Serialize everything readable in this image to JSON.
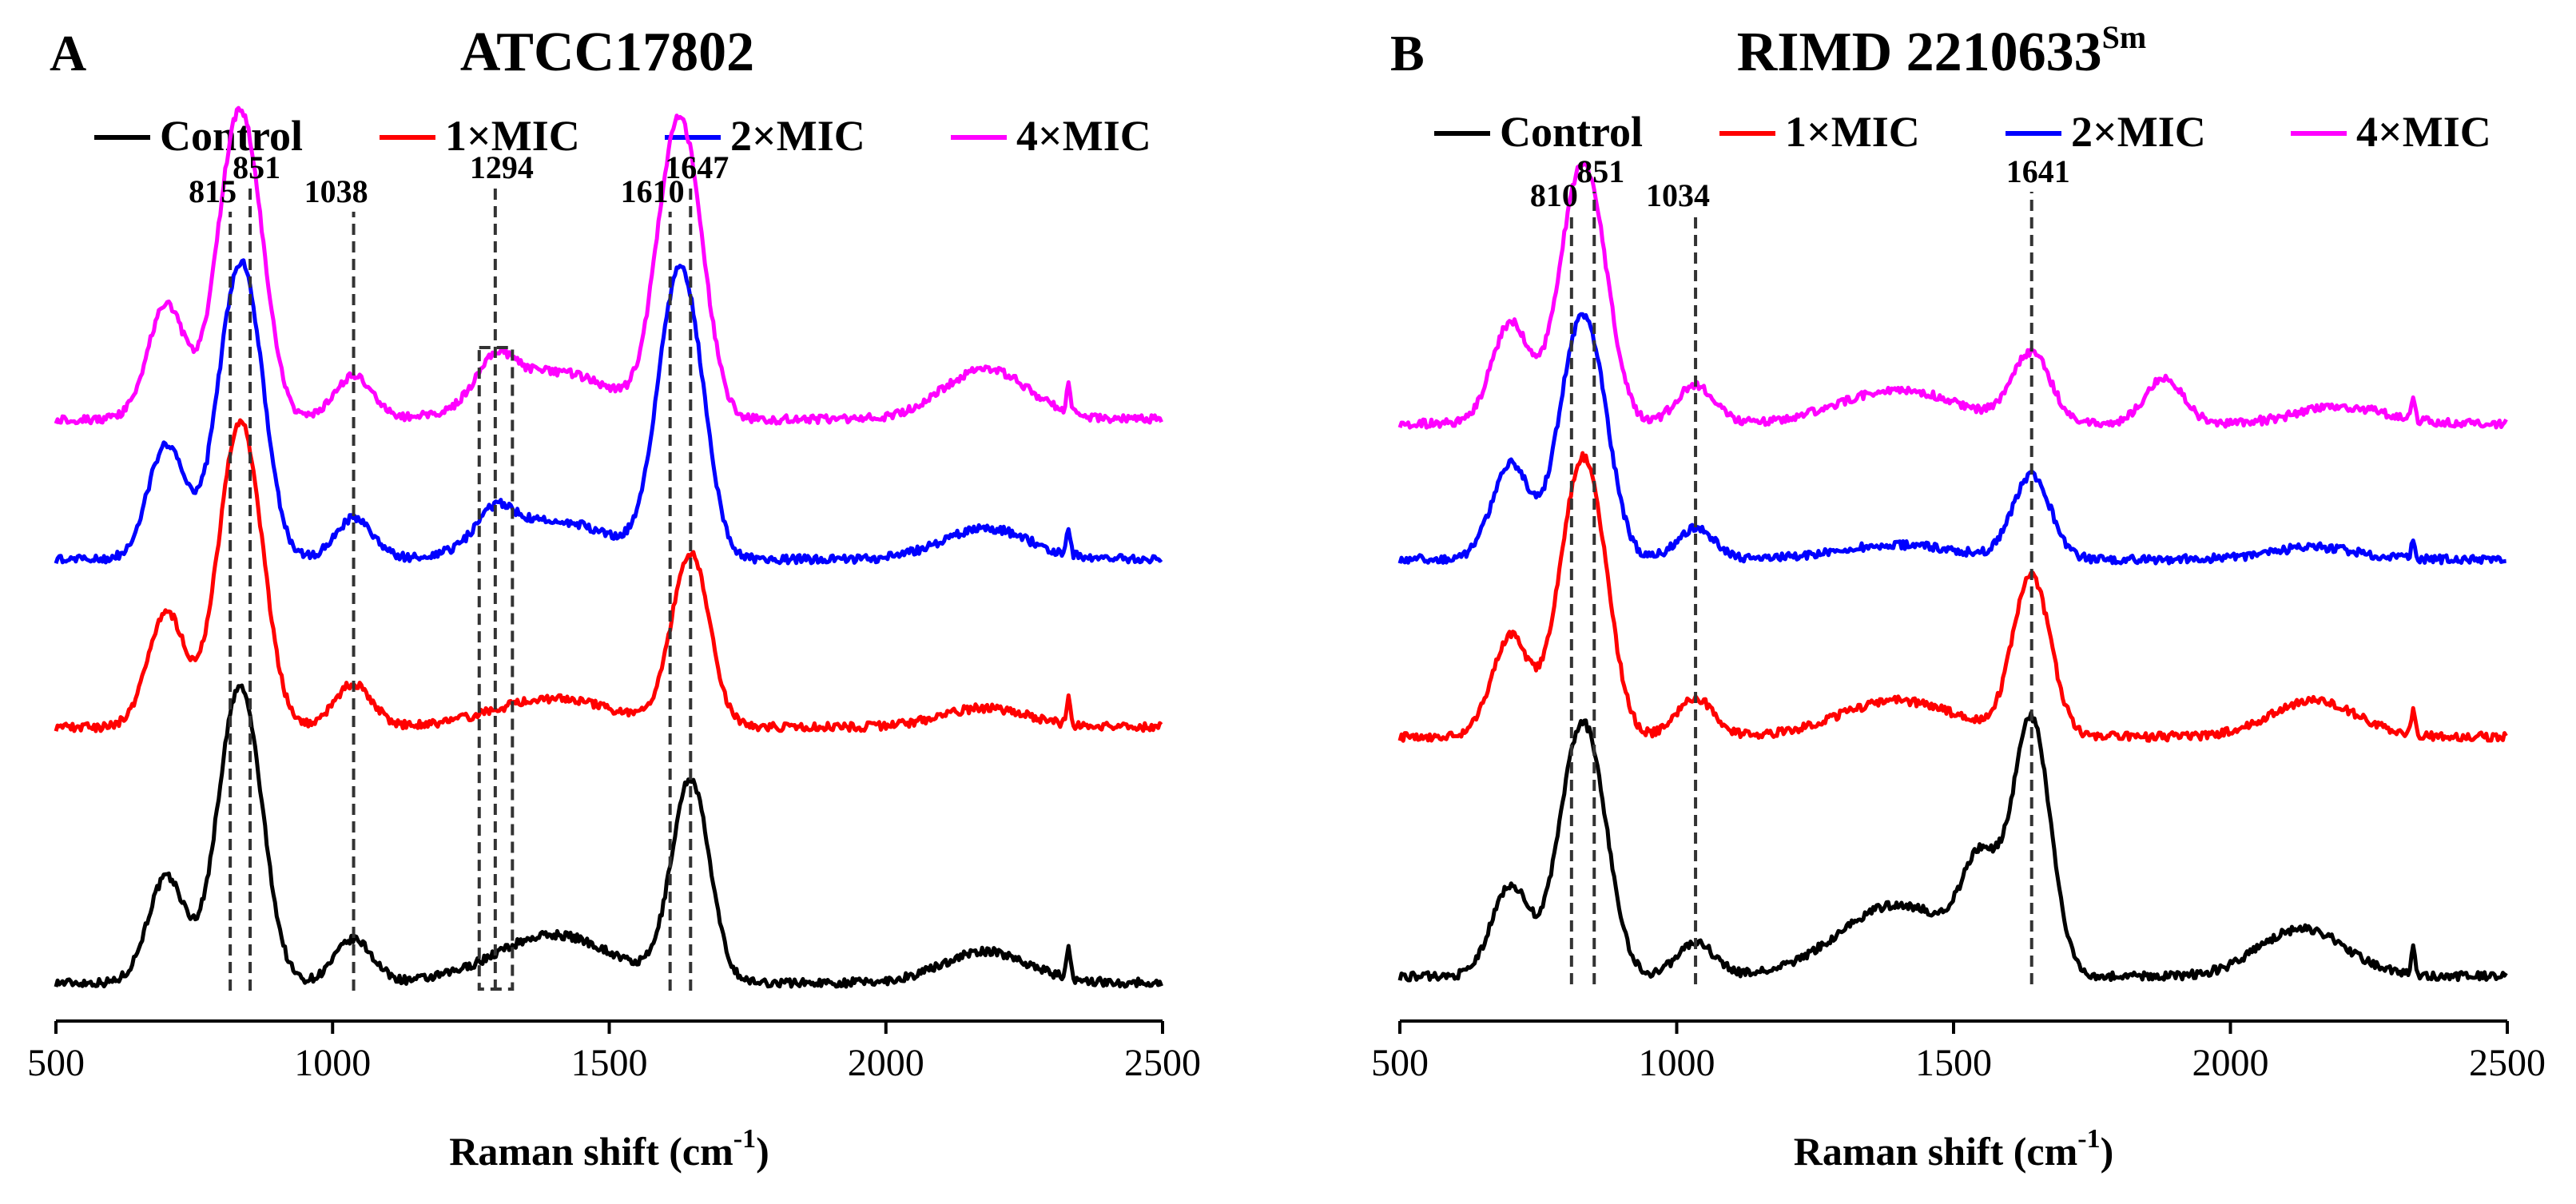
{
  "figure": {
    "panels": [
      {
        "letter": "A",
        "title": "ATCC17802",
        "title_sup": ""
      },
      {
        "letter": "B",
        "title": "RIMD 2210633",
        "title_sup": "Sm"
      }
    ],
    "xlabel": {
      "text": "Raman shift (cm",
      "sup": "-1",
      "close": ")"
    }
  },
  "chart_data": [
    {
      "type": "line",
      "title": "ATCC17802",
      "xlabel": "Raman shift (cm-1)",
      "xlim": [
        500,
        2500
      ],
      "xticks": [
        "500",
        "1000",
        "1500",
        "2000",
        "2500"
      ],
      "legend_position": "top",
      "series": [
        {
          "name": "Control",
          "color": "#000000",
          "peaks": [
            {
              "x": 700,
              "y": 0.44
            },
            {
              "x": 815,
              "y": 0.72
            },
            {
              "x": 851,
              "y": 0.7
            },
            {
              "x": 1038,
              "y": 0.18
            },
            {
              "x": 1400,
              "y": 0.2
            },
            {
              "x": 1647,
              "y": 0.84
            },
            {
              "x": 2180,
              "y": 0.13
            },
            {
              "x": 2330,
              "y": 0.12
            }
          ]
        },
        {
          "name": "1×MIC",
          "color": "#ff0000",
          "peaks": [
            {
              "x": 700,
              "y": 0.48
            },
            {
              "x": 815,
              "y": 0.71
            },
            {
              "x": 851,
              "y": 0.75
            },
            {
              "x": 1038,
              "y": 0.18
            },
            {
              "x": 1400,
              "y": 0.12
            },
            {
              "x": 1647,
              "y": 0.72
            },
            {
              "x": 2180,
              "y": 0.08
            },
            {
              "x": 2330,
              "y": 0.11
            }
          ]
        },
        {
          "name": "2×MIC",
          "color": "#0000ff",
          "peaks": [
            {
              "x": 700,
              "y": 0.48
            },
            {
              "x": 815,
              "y": 0.68
            },
            {
              "x": 851,
              "y": 0.75
            },
            {
              "x": 1038,
              "y": 0.17
            },
            {
              "x": 1294,
              "y": 0.13
            },
            {
              "x": 1400,
              "y": 0.16
            },
            {
              "x": 1610,
              "y": 0.68
            },
            {
              "x": 1647,
              "y": 0.72
            },
            {
              "x": 2180,
              "y": 0.13
            },
            {
              "x": 2330,
              "y": 0.1
            }
          ]
        },
        {
          "name": "4×MIC",
          "color": "#ff00ff",
          "peaks": [
            {
              "x": 700,
              "y": 0.48
            },
            {
              "x": 815,
              "y": 0.75
            },
            {
              "x": 851,
              "y": 0.74
            },
            {
              "x": 1038,
              "y": 0.18
            },
            {
              "x": 1294,
              "y": 0.16
            },
            {
              "x": 1400,
              "y": 0.2
            },
            {
              "x": 1610,
              "y": 0.74
            },
            {
              "x": 1647,
              "y": 0.7
            },
            {
              "x": 2180,
              "y": 0.21
            },
            {
              "x": 2330,
              "y": 0.12
            }
          ]
        }
      ],
      "peak_labels": [
        {
          "x": 815,
          "text": "815"
        },
        {
          "x": 851,
          "text": "851"
        },
        {
          "x": 1038,
          "text": "1038"
        },
        {
          "x": 1294,
          "text": "1294"
        },
        {
          "x": 1610,
          "text": "1610"
        },
        {
          "x": 1647,
          "text": "1647"
        }
      ],
      "annotation_box": {
        "x": [
          1265,
          1325
        ]
      }
    },
    {
      "type": "line",
      "title": "RIMD 2210633Sm",
      "xlabel": "Raman shift (cm-1)",
      "xlim": [
        500,
        2500
      ],
      "xticks": [
        "500",
        "1000",
        "1500",
        "2000",
        "2500"
      ],
      "legend_position": "top",
      "series": [
        {
          "name": "Control",
          "color": "#000000",
          "peaks": [
            {
              "x": 700,
              "y": 0.38
            },
            {
              "x": 810,
              "y": 0.63
            },
            {
              "x": 851,
              "y": 0.64
            },
            {
              "x": 1034,
              "y": 0.14
            },
            {
              "x": 1400,
              "y": 0.3
            },
            {
              "x": 1550,
              "y": 0.4
            },
            {
              "x": 1641,
              "y": 1.05
            },
            {
              "x": 2130,
              "y": 0.2
            },
            {
              "x": 2330,
              "y": 0.12
            }
          ]
        },
        {
          "name": "1×MIC",
          "color": "#ff0000",
          "peaks": [
            {
              "x": 700,
              "y": 0.42
            },
            {
              "x": 810,
              "y": 0.68
            },
            {
              "x": 851,
              "y": 0.72
            },
            {
              "x": 1034,
              "y": 0.16
            },
            {
              "x": 1400,
              "y": 0.15
            },
            {
              "x": 1641,
              "y": 0.66
            },
            {
              "x": 2150,
              "y": 0.15
            },
            {
              "x": 2330,
              "y": 0.11
            }
          ]
        },
        {
          "name": "2×MIC",
          "color": "#0000ff",
          "peaks": [
            {
              "x": 700,
              "y": 0.4
            },
            {
              "x": 810,
              "y": 0.6
            },
            {
              "x": 851,
              "y": 0.62
            },
            {
              "x": 1034,
              "y": 0.13
            },
            {
              "x": 1400,
              "y": 0.06
            },
            {
              "x": 1641,
              "y": 0.35
            },
            {
              "x": 2150,
              "y": 0.05
            },
            {
              "x": 2330,
              "y": 0.08
            }
          ]
        },
        {
          "name": "4×MIC",
          "color": "#ff00ff",
          "peaks": [
            {
              "x": 700,
              "y": 0.42
            },
            {
              "x": 810,
              "y": 0.64
            },
            {
              "x": 851,
              "y": 0.66
            },
            {
              "x": 1034,
              "y": 0.16
            },
            {
              "x": 1400,
              "y": 0.14
            },
            {
              "x": 1641,
              "y": 0.29
            },
            {
              "x": 1880,
              "y": 0.19
            },
            {
              "x": 2200,
              "y": 0.07
            },
            {
              "x": 2330,
              "y": 0.1
            }
          ]
        }
      ],
      "peak_labels": [
        {
          "x": 810,
          "text": "810"
        },
        {
          "x": 851,
          "text": "851"
        },
        {
          "x": 1034,
          "text": "1034"
        },
        {
          "x": 1641,
          "text": "1641"
        }
      ]
    }
  ]
}
